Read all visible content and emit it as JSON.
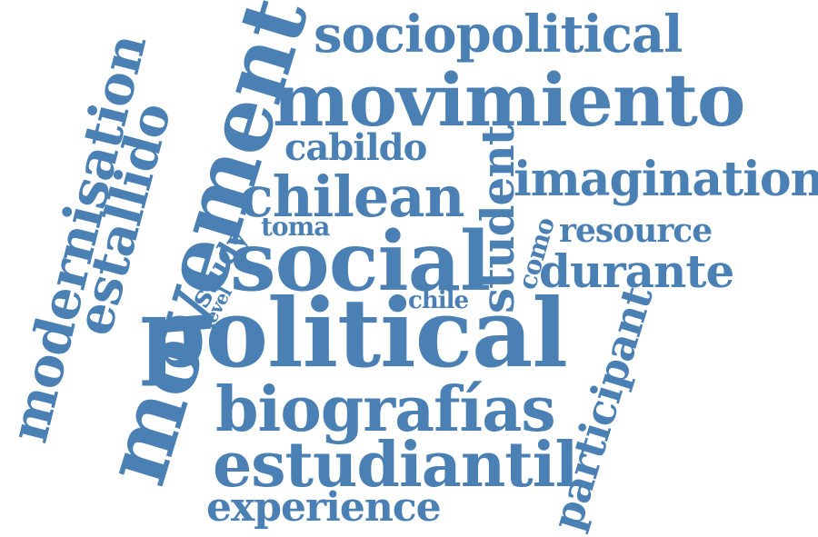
{
  "word_cloud": {
    "color": "#4a80b3",
    "words": [
      {
        "id": "sociopolitical",
        "text": "sociopolitical",
        "orientation": "horizontal"
      },
      {
        "id": "movimiento",
        "text": "movimiento",
        "orientation": "horizontal"
      },
      {
        "id": "cabildo",
        "text": "cabildo",
        "orientation": "horizontal"
      },
      {
        "id": "chilean",
        "text": "chilean",
        "orientation": "horizontal"
      },
      {
        "id": "imagination",
        "text": "imagination",
        "orientation": "horizontal"
      },
      {
        "id": "toma",
        "text": "toma",
        "orientation": "horizontal"
      },
      {
        "id": "resource",
        "text": "resource",
        "orientation": "horizontal"
      },
      {
        "id": "social",
        "text": "social",
        "orientation": "horizontal"
      },
      {
        "id": "durante",
        "text": "durante",
        "orientation": "horizontal"
      },
      {
        "id": "chile",
        "text": "chile",
        "orientation": "horizontal"
      },
      {
        "id": "political",
        "text": "political",
        "orientation": "horizontal"
      },
      {
        "id": "biografias",
        "text": "biografías",
        "orientation": "horizontal"
      },
      {
        "id": "estudiantil",
        "text": "estudiantil",
        "orientation": "horizontal"
      },
      {
        "id": "experience",
        "text": "experience",
        "orientation": "horizontal"
      },
      {
        "id": "modernisation",
        "text": "modernisation",
        "orientation": "vertical"
      },
      {
        "id": "movement",
        "text": "movement",
        "orientation": "vertical"
      },
      {
        "id": "estallido",
        "text": "estallido",
        "orientation": "vertical"
      },
      {
        "id": "study",
        "text": "study",
        "orientation": "diagonal"
      },
      {
        "id": "level",
        "text": "level",
        "orientation": "diagonal"
      },
      {
        "id": "student",
        "text": "student",
        "orientation": "vertical"
      },
      {
        "id": "como",
        "text": "como",
        "orientation": "diagonal"
      },
      {
        "id": "participant",
        "text": "participant",
        "orientation": "diagonal"
      }
    ]
  }
}
